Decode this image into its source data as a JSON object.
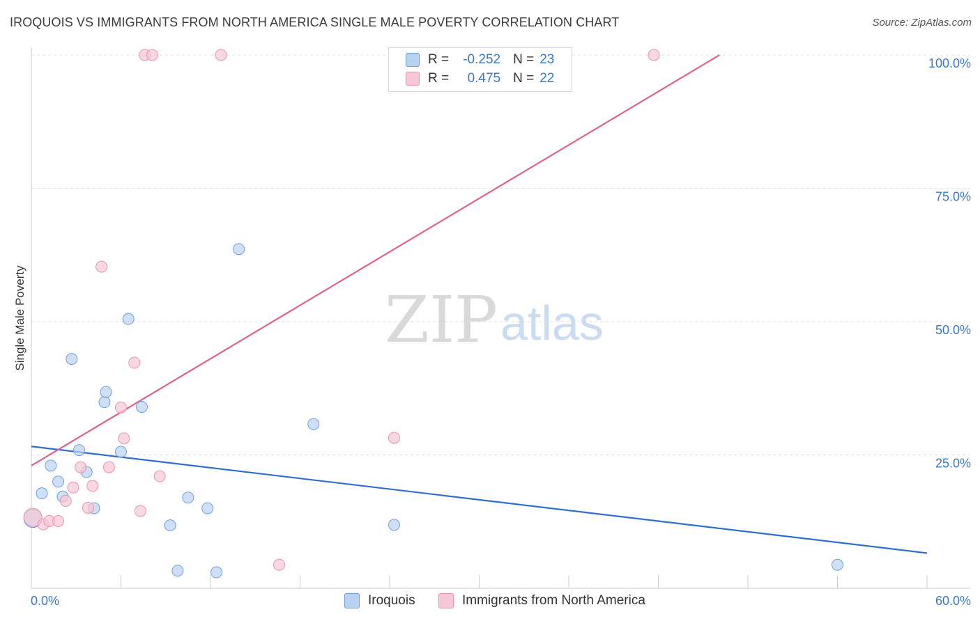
{
  "title": "IROQUOIS VS IMMIGRANTS FROM NORTH AMERICA SINGLE MALE POVERTY CORRELATION CHART",
  "source": "Source: ZipAtlas.com",
  "watermark": {
    "zip": "ZIP",
    "atlas": "atlas"
  },
  "colors": {
    "blue_fill": "#b9d2f2",
    "blue_stroke": "#6f9fd8",
    "blue_line": "#2f6fcc",
    "pink_fill": "#f8c7d6",
    "pink_stroke": "#e993ad",
    "pink_line": "#e0608b",
    "tick_label": "#3a78c9",
    "grid": "#dddddd"
  },
  "legend": {
    "rows": [
      {
        "r_label": "R =",
        "r_value": "-0.252",
        "n_label": "N =",
        "n_value": "23"
      },
      {
        "r_label": "R =",
        "r_value": "0.475",
        "n_label": "N =",
        "n_value": "22"
      }
    ]
  },
  "bottom_legend": {
    "series1": "Iroquois",
    "series2": "Immigrants from North America"
  },
  "chart_data": {
    "type": "scatter",
    "title": "IROQUOIS VS IMMIGRANTS FROM NORTH AMERICA SINGLE MALE POVERTY CORRELATION CHART",
    "ylabel": "Single Male Poverty",
    "xlabel": "",
    "xlim": [
      0,
      60
    ],
    "ylim": [
      0,
      100
    ],
    "x_tick_labels": [
      "0.0%",
      "60.0%"
    ],
    "y_ticks": [
      25,
      50,
      75,
      100
    ],
    "y_tick_labels": [
      "25.0%",
      "50.0%",
      "75.0%",
      "100.0%"
    ],
    "grid": true,
    "legend_position": "top-center",
    "series": [
      {
        "name": "Iroquois",
        "r": -0.252,
        "n": 23,
        "points": [
          {
            "x": 0.1,
            "y": 13.1
          },
          {
            "x": 0.7,
            "y": 17.8
          },
          {
            "x": 1.3,
            "y": 23.0
          },
          {
            "x": 1.8,
            "y": 20.0
          },
          {
            "x": 2.1,
            "y": 17.2
          },
          {
            "x": 2.7,
            "y": 43.0
          },
          {
            "x": 3.2,
            "y": 25.9
          },
          {
            "x": 3.7,
            "y": 21.8
          },
          {
            "x": 4.2,
            "y": 15.0
          },
          {
            "x": 4.9,
            "y": 34.9
          },
          {
            "x": 5.0,
            "y": 36.8
          },
          {
            "x": 6.0,
            "y": 25.6
          },
          {
            "x": 6.5,
            "y": 50.5
          },
          {
            "x": 7.4,
            "y": 34.0
          },
          {
            "x": 9.3,
            "y": 11.8
          },
          {
            "x": 9.8,
            "y": 3.3
          },
          {
            "x": 10.5,
            "y": 17.0
          },
          {
            "x": 11.8,
            "y": 15.0
          },
          {
            "x": 12.4,
            "y": 3.0
          },
          {
            "x": 13.9,
            "y": 63.6
          },
          {
            "x": 18.9,
            "y": 30.8
          },
          {
            "x": 24.3,
            "y": 11.9
          },
          {
            "x": 54.0,
            "y": 4.4
          }
        ],
        "trend": {
          "x": [
            0,
            60
          ],
          "y": [
            26.6,
            6.6
          ]
        }
      },
      {
        "name": "Immigrants from North America",
        "r": 0.475,
        "n": 22,
        "points": [
          {
            "x": 0.1,
            "y": 13.3
          },
          {
            "x": 0.8,
            "y": 12.0
          },
          {
            "x": 1.2,
            "y": 12.6
          },
          {
            "x": 1.8,
            "y": 12.6
          },
          {
            "x": 2.3,
            "y": 16.4
          },
          {
            "x": 2.8,
            "y": 18.9
          },
          {
            "x": 3.3,
            "y": 22.7
          },
          {
            "x": 3.8,
            "y": 15.1
          },
          {
            "x": 4.1,
            "y": 19.2
          },
          {
            "x": 4.7,
            "y": 60.3
          },
          {
            "x": 5.2,
            "y": 22.7
          },
          {
            "x": 6.0,
            "y": 33.9
          },
          {
            "x": 6.2,
            "y": 28.1
          },
          {
            "x": 6.9,
            "y": 42.3
          },
          {
            "x": 7.3,
            "y": 14.5
          },
          {
            "x": 7.6,
            "y": 100.0
          },
          {
            "x": 8.1,
            "y": 100.0
          },
          {
            "x": 8.6,
            "y": 21.0
          },
          {
            "x": 12.7,
            "y": 100.0
          },
          {
            "x": 16.6,
            "y": 4.4
          },
          {
            "x": 24.3,
            "y": 28.2
          },
          {
            "x": 41.7,
            "y": 100.0
          }
        ],
        "trend": {
          "x": [
            0,
            46.1
          ],
          "y": [
            23.0,
            100.0
          ]
        }
      }
    ]
  }
}
